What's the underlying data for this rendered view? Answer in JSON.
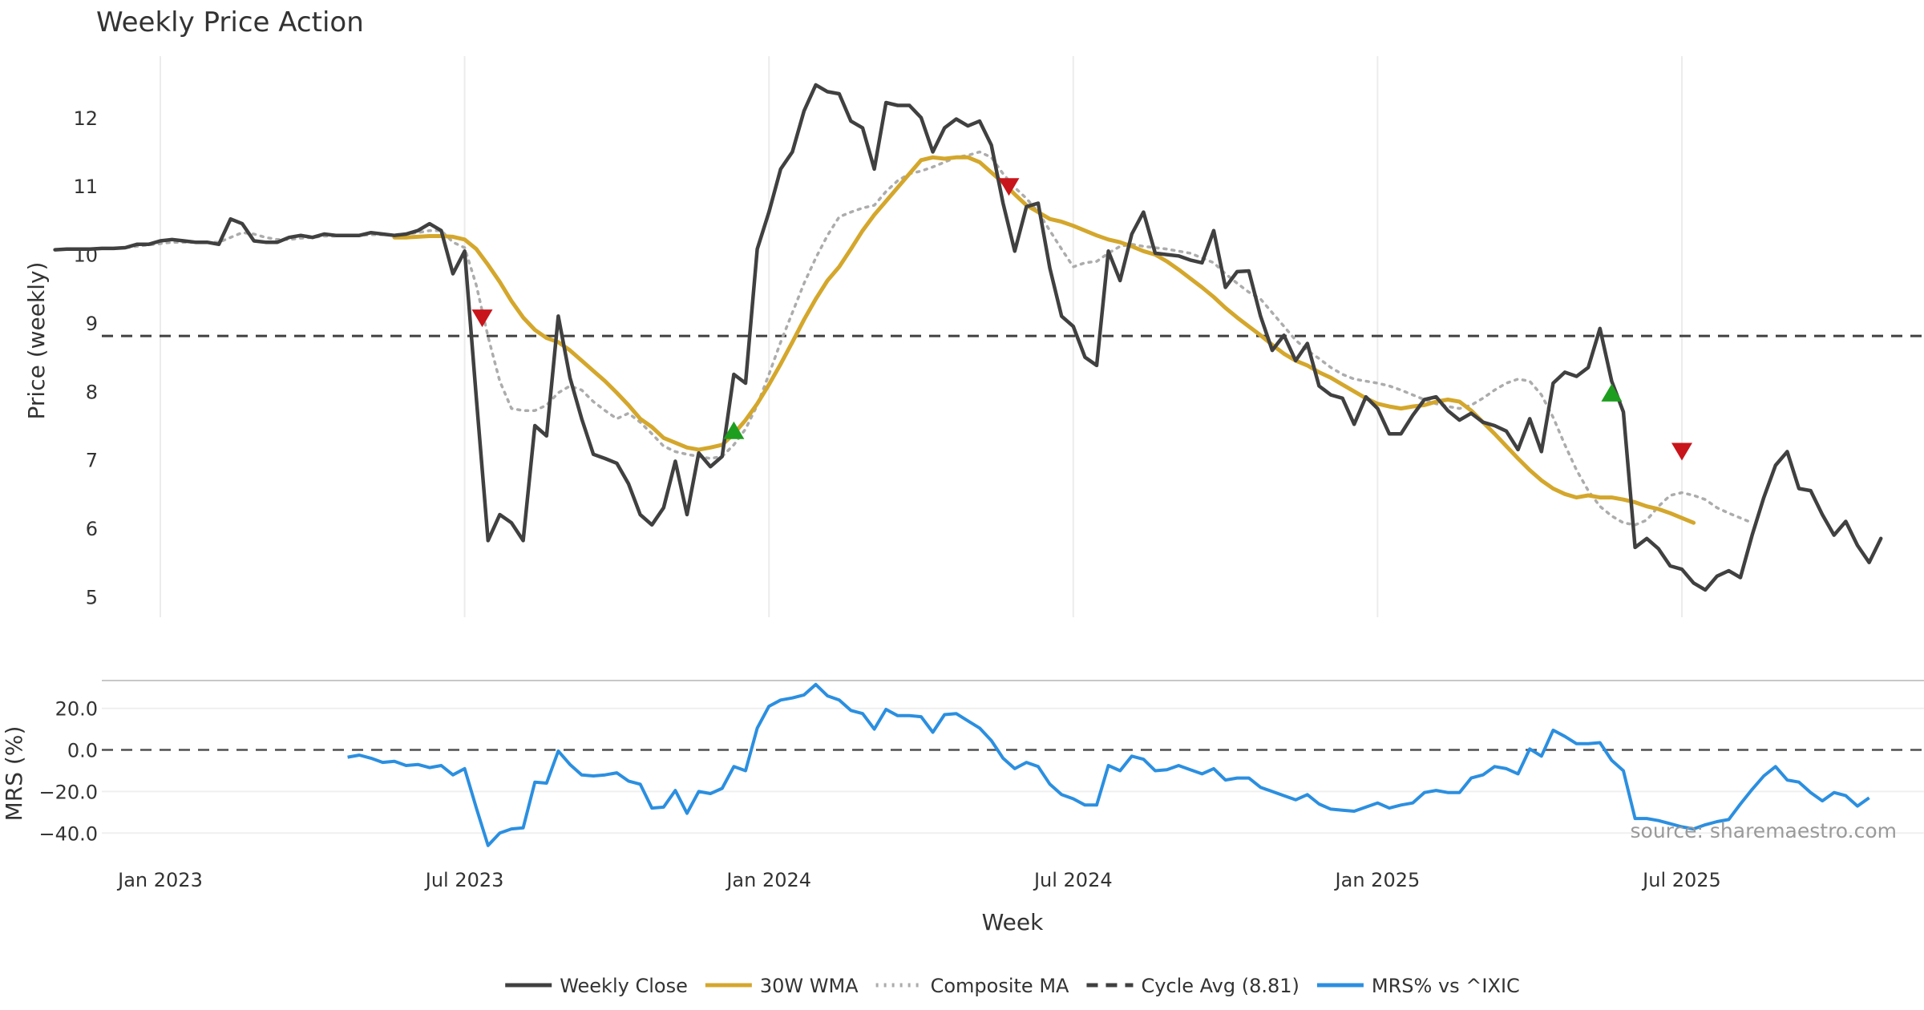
{
  "chart_data": {
    "type": "line",
    "title": "Weekly Price Action",
    "xlabel": "Week",
    "source": "source: sharemaestro.com",
    "x_ticks": [
      {
        "label": "Jan 2023",
        "t": 5
      },
      {
        "label": "Jul 2023",
        "t": 31
      },
      {
        "label": "Jan 2024",
        "t": 57
      },
      {
        "label": "Jul 2024",
        "t": 83
      },
      {
        "label": "Jan 2025",
        "t": 109
      },
      {
        "label": "Jul 2025",
        "t": 135
      }
    ],
    "price_panel": {
      "ylabel": "Price (weekly)",
      "ylim": [
        4.7,
        12.9
      ],
      "yticks": [
        5,
        6,
        7,
        8,
        9,
        10,
        11,
        12
      ],
      "series": [
        {
          "name": "Weekly Close",
          "color": "#404040",
          "style": "solid",
          "t0": -4,
          "values": [
            10.07,
            10.08,
            10.08,
            10.08,
            10.09,
            10.09,
            10.1,
            10.15,
            10.15,
            10.2,
            10.22,
            10.2,
            10.18,
            10.18,
            10.15,
            10.52,
            10.45,
            10.2,
            10.18,
            10.18,
            10.25,
            10.28,
            10.25,
            10.3,
            10.28,
            10.28,
            10.28,
            10.32,
            10.3,
            10.28,
            10.3,
            10.35,
            10.45,
            10.35,
            9.72,
            10.05,
            7.9,
            5.82,
            6.2,
            6.08,
            5.82,
            7.5,
            7.35,
            9.1,
            8.2,
            7.6,
            7.08,
            7.02,
            6.95,
            6.65,
            6.2,
            6.05,
            6.3,
            6.98,
            6.2,
            7.1,
            6.9,
            7.05,
            8.25,
            8.12,
            10.08,
            10.62,
            11.25,
            11.5,
            12.1,
            12.48,
            12.38,
            12.35,
            11.95,
            11.85,
            11.25,
            12.22,
            12.18,
            12.18,
            12.0,
            11.5,
            11.85,
            11.98,
            11.88,
            11.95,
            11.6,
            10.75,
            10.05,
            10.7,
            10.75,
            9.8,
            9.1,
            8.95,
            8.5,
            8.38,
            10.05,
            9.62,
            10.3,
            10.62,
            10.02,
            10.0,
            9.98,
            9.92,
            9.88,
            10.35,
            9.52,
            9.75,
            9.76,
            9.1,
            8.6,
            8.82,
            8.45,
            8.7,
            8.08,
            7.95,
            7.9,
            7.52,
            7.92,
            7.75,
            7.38,
            7.38,
            7.65,
            7.88,
            7.92,
            7.72,
            7.58,
            7.68,
            7.55,
            7.5,
            7.42,
            7.15,
            7.6,
            7.12,
            8.12,
            8.28,
            8.22,
            8.35,
            8.92,
            8.15,
            7.7,
            5.72,
            5.85,
            5.7,
            5.45,
            5.4,
            5.2,
            5.1,
            5.3,
            5.38,
            5.28,
            5.9,
            6.45,
            6.92,
            7.12,
            6.58,
            6.55,
            6.2,
            5.9,
            6.1,
            5.75,
            5.5,
            5.85
          ]
        },
        {
          "name": "30W WMA",
          "color": "#D4A72C",
          "style": "solid",
          "t0": 25,
          "values": [
            10.25,
            10.25,
            10.26,
            10.27,
            10.27,
            10.26,
            10.22,
            10.08,
            9.85,
            9.6,
            9.32,
            9.08,
            8.9,
            8.78,
            8.72,
            8.6,
            8.45,
            8.3,
            8.15,
            7.98,
            7.8,
            7.6,
            7.48,
            7.32,
            7.25,
            7.18,
            7.15,
            7.18,
            7.22,
            7.38,
            7.58,
            7.82,
            8.1,
            8.4,
            8.72,
            9.05,
            9.35,
            9.62,
            9.82,
            10.08,
            10.35,
            10.58,
            10.78,
            10.98,
            11.18,
            11.38,
            11.42,
            11.4,
            11.42,
            11.42,
            11.35,
            11.2,
            11.05,
            10.88,
            10.72,
            10.62,
            10.52,
            10.48,
            10.42,
            10.35,
            10.28,
            10.22,
            10.18,
            10.12,
            10.05,
            10.0,
            9.9,
            9.78,
            9.65,
            9.52,
            9.38,
            9.22,
            9.08,
            8.95,
            8.82,
            8.68,
            8.55,
            8.45,
            8.38,
            8.28,
            8.2,
            8.1,
            8.0,
            7.9,
            7.82,
            7.78,
            7.75,
            7.78,
            7.8,
            7.85,
            7.88,
            7.85,
            7.72,
            7.55,
            7.38,
            7.2,
            7.02,
            6.85,
            6.7,
            6.58,
            6.5,
            6.45,
            6.48,
            6.45,
            6.45,
            6.42,
            6.38,
            6.32,
            6.28,
            6.22,
            6.15,
            6.08
          ]
        },
        {
          "name": "Composite MA",
          "color": "#ACACAC",
          "style": "dotted",
          "t0": -4,
          "values": [
            10.07,
            10.08,
            10.08,
            10.08,
            10.09,
            10.09,
            10.1,
            10.12,
            10.14,
            10.16,
            10.18,
            10.18,
            10.18,
            10.18,
            10.18,
            10.25,
            10.32,
            10.3,
            10.25,
            10.22,
            10.22,
            10.24,
            10.25,
            10.27,
            10.27,
            10.28,
            10.28,
            10.29,
            10.29,
            10.29,
            10.3,
            10.32,
            10.35,
            10.35,
            10.18,
            10.1,
            9.55,
            8.8,
            8.15,
            7.75,
            7.72,
            7.72,
            7.8,
            7.98,
            8.08,
            8.02,
            7.85,
            7.72,
            7.6,
            7.68,
            7.55,
            7.38,
            7.2,
            7.12,
            7.08,
            7.05,
            7.02,
            7.05,
            7.22,
            7.45,
            7.8,
            8.25,
            8.72,
            9.15,
            9.58,
            9.95,
            10.28,
            10.55,
            10.62,
            10.68,
            10.72,
            10.92,
            11.08,
            11.18,
            11.22,
            11.28,
            11.35,
            11.42,
            11.45,
            11.5,
            11.42,
            11.18,
            10.98,
            10.82,
            10.62,
            10.35,
            10.08,
            9.82,
            9.88,
            9.9,
            10.02,
            10.12,
            10.15,
            10.12,
            10.1,
            10.08,
            10.05,
            10.02,
            9.95,
            9.88,
            9.72,
            9.58,
            9.45,
            9.35,
            9.15,
            8.95,
            8.75,
            8.6,
            8.48,
            8.35,
            8.25,
            8.18,
            8.15,
            8.12,
            8.08,
            8.02,
            7.95,
            7.88,
            7.82,
            7.78,
            7.75,
            7.8,
            7.9,
            8.02,
            8.12,
            8.18,
            8.15,
            7.95,
            7.62,
            7.22,
            6.85,
            6.55,
            6.32,
            6.18,
            6.08,
            6.05,
            6.12,
            6.32,
            6.48,
            6.52,
            6.48,
            6.42,
            6.3,
            6.22,
            6.15,
            6.08
          ]
        }
      ],
      "cycle_avg": {
        "name": "Cycle Avg (8.81)",
        "value": 8.81,
        "color": "#404040"
      },
      "buy_signals": [
        {
          "t": 54,
          "y": 7.42
        },
        {
          "t": 129,
          "y": 7.97
        }
      ],
      "sell_signals": [
        {
          "t": 32.5,
          "y": 9.08
        },
        {
          "t": 77.5,
          "y": 11.0
        },
        {
          "t": 135,
          "y": 7.13
        }
      ]
    },
    "mrs_panel": {
      "ylabel": "MRS (%)",
      "ylim": [
        -48,
        33
      ],
      "yticks": [
        20.0,
        0.0,
        -20.0,
        -40.0
      ],
      "series": {
        "name": "MRS% vs ^IXIC",
        "color": "#2B8FE0",
        "t0": 21,
        "values": [
          -3.5,
          -2.5,
          -4,
          -6,
          -5.5,
          -7.5,
          -7,
          -8.5,
          -7.5,
          -12,
          -9,
          -28,
          -46,
          -40,
          -38,
          -37.5,
          -15.5,
          -16,
          -0.5,
          -7,
          -12,
          -12.5,
          -12,
          -11,
          -15,
          -16.5,
          -28,
          -27.5,
          -19.5,
          -30.5,
          -20,
          -21,
          -18.5,
          -8,
          -10,
          10.5,
          21,
          24,
          25,
          26.5,
          31.5,
          26,
          24,
          19,
          17.5,
          10,
          19.5,
          16.5,
          16.5,
          16,
          8.5,
          17,
          17.5,
          14,
          10.5,
          4.5,
          -4,
          -9,
          -6,
          -8,
          -16.5,
          -21.5,
          -23.5,
          -26.5,
          -26.5,
          -7.5,
          -10,
          -3,
          -4.5,
          -10,
          -9.5,
          -7.5,
          -9.5,
          -11.5,
          -9,
          -14.5,
          -13.5,
          -13.5,
          -18,
          -20,
          -22,
          -24,
          -21.5,
          -26,
          -28.5,
          -29,
          -29.5,
          -27.5,
          -25.5,
          -28,
          -26.5,
          -25.5,
          -20.5,
          -19.5,
          -20.5,
          -20.5,
          -13.5,
          -12,
          -8,
          -9,
          -11.5,
          0.5,
          -3,
          9.5,
          6.5,
          3,
          3,
          3.5,
          -5,
          -10,
          -33,
          -33,
          -34,
          -35.5,
          -37,
          -38,
          -36,
          -34.5,
          -33.5,
          -26,
          -19,
          -12.5,
          -8,
          -14.5,
          -15.5,
          -20.5,
          -24.5,
          -20.5,
          -22,
          -27,
          -23
        ]
      }
    },
    "legend": [
      {
        "label": "Weekly Close",
        "color": "#404040",
        "style": "solid"
      },
      {
        "label": "30W WMA",
        "color": "#D4A72C",
        "style": "solid"
      },
      {
        "label": "Composite MA",
        "color": "#ACACAC",
        "style": "dotted"
      },
      {
        "label": "Cycle Avg (8.81)",
        "color": "#404040",
        "style": "dashed"
      },
      {
        "label": "MRS% vs ^IXIC",
        "color": "#2B8FE0",
        "style": "solid"
      }
    ],
    "signal_colors": {
      "buy": "#1E9E1E",
      "sell": "#C8151B"
    }
  }
}
